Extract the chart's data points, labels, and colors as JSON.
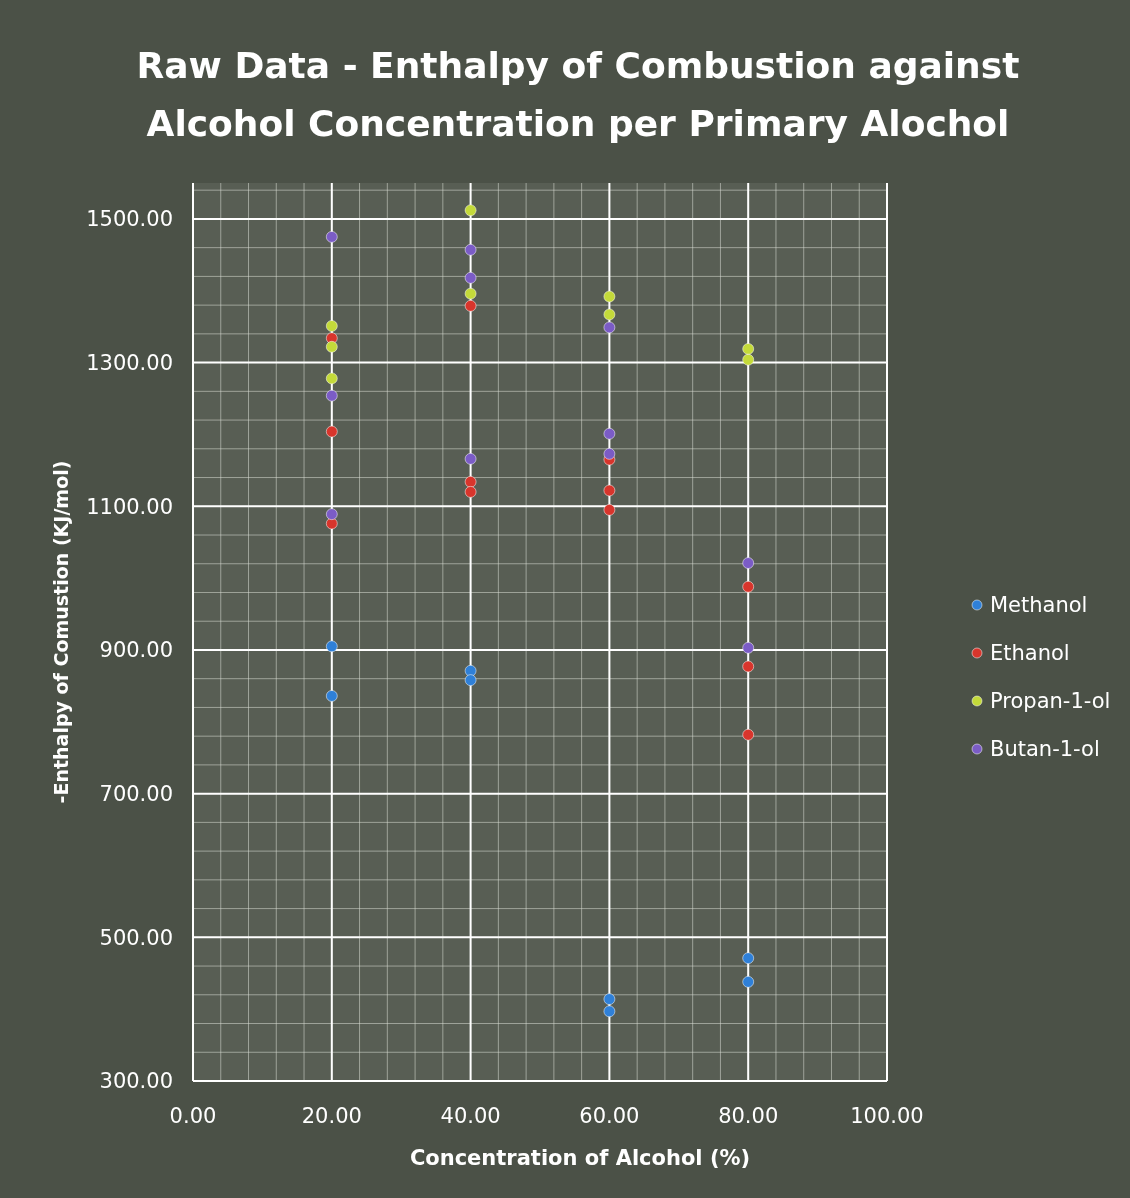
{
  "chart_data": {
    "type": "scatter",
    "title": "Raw Data - Enthalpy of Combustion against Alcohol Concentration per Primary Alochol",
    "xlabel": "Concentration of Alcohol (%)",
    "ylabel": "-Enthalpy of Comustion (KJ/mol)",
    "xlim": [
      0,
      100
    ],
    "ylim": [
      300,
      1550
    ],
    "xticks": [
      {
        "value": 0,
        "label": "0.00"
      },
      {
        "value": 20,
        "label": "20.00"
      },
      {
        "value": 40,
        "label": "40.00"
      },
      {
        "value": 60,
        "label": "60.00"
      },
      {
        "value": 80,
        "label": "80.00"
      },
      {
        "value": 100,
        "label": "100.00"
      }
    ],
    "yticks": [
      {
        "value": 300,
        "label": "300.00"
      },
      {
        "value": 500,
        "label": "500.00"
      },
      {
        "value": 700,
        "label": "700.00"
      },
      {
        "value": 900,
        "label": "900.00"
      },
      {
        "value": 1100,
        "label": "1100.00"
      },
      {
        "value": 1300,
        "label": "1300.00"
      },
      {
        "value": 1500,
        "label": "1500.00"
      }
    ],
    "grid": true,
    "legend": "right",
    "marker": "circle",
    "series": [
      {
        "name": "Methanol",
        "color": "#2f80d8",
        "x": [
          20,
          20,
          40,
          40,
          60,
          60,
          80,
          80
        ],
        "values": [
          905,
          836,
          871,
          858,
          414,
          397,
          471,
          438
        ]
      },
      {
        "name": "Ethanol",
        "color": "#d8352c",
        "x": [
          20,
          20,
          20,
          40,
          40,
          40,
          60,
          60,
          60,
          80,
          80,
          80
        ],
        "values": [
          1334,
          1204,
          1076,
          1379,
          1134,
          1120,
          1165,
          1122,
          1095,
          988,
          877,
          782
        ]
      },
      {
        "name": "Propan-1-ol",
        "color": "#c4da3a",
        "x": [
          20,
          20,
          20,
          40,
          40,
          60,
          60,
          80,
          80
        ],
        "values": [
          1351,
          1322,
          1278,
          1512,
          1396,
          1392,
          1367,
          1319,
          1304
        ]
      },
      {
        "name": "Butan-1-ol",
        "color": "#7b5cc6",
        "x": [
          20,
          20,
          20,
          40,
          40,
          40,
          60,
          60,
          60,
          80,
          80
        ],
        "values": [
          1475,
          1254,
          1089,
          1457,
          1418,
          1166,
          1349,
          1201,
          1173,
          1021,
          903
        ]
      }
    ]
  }
}
